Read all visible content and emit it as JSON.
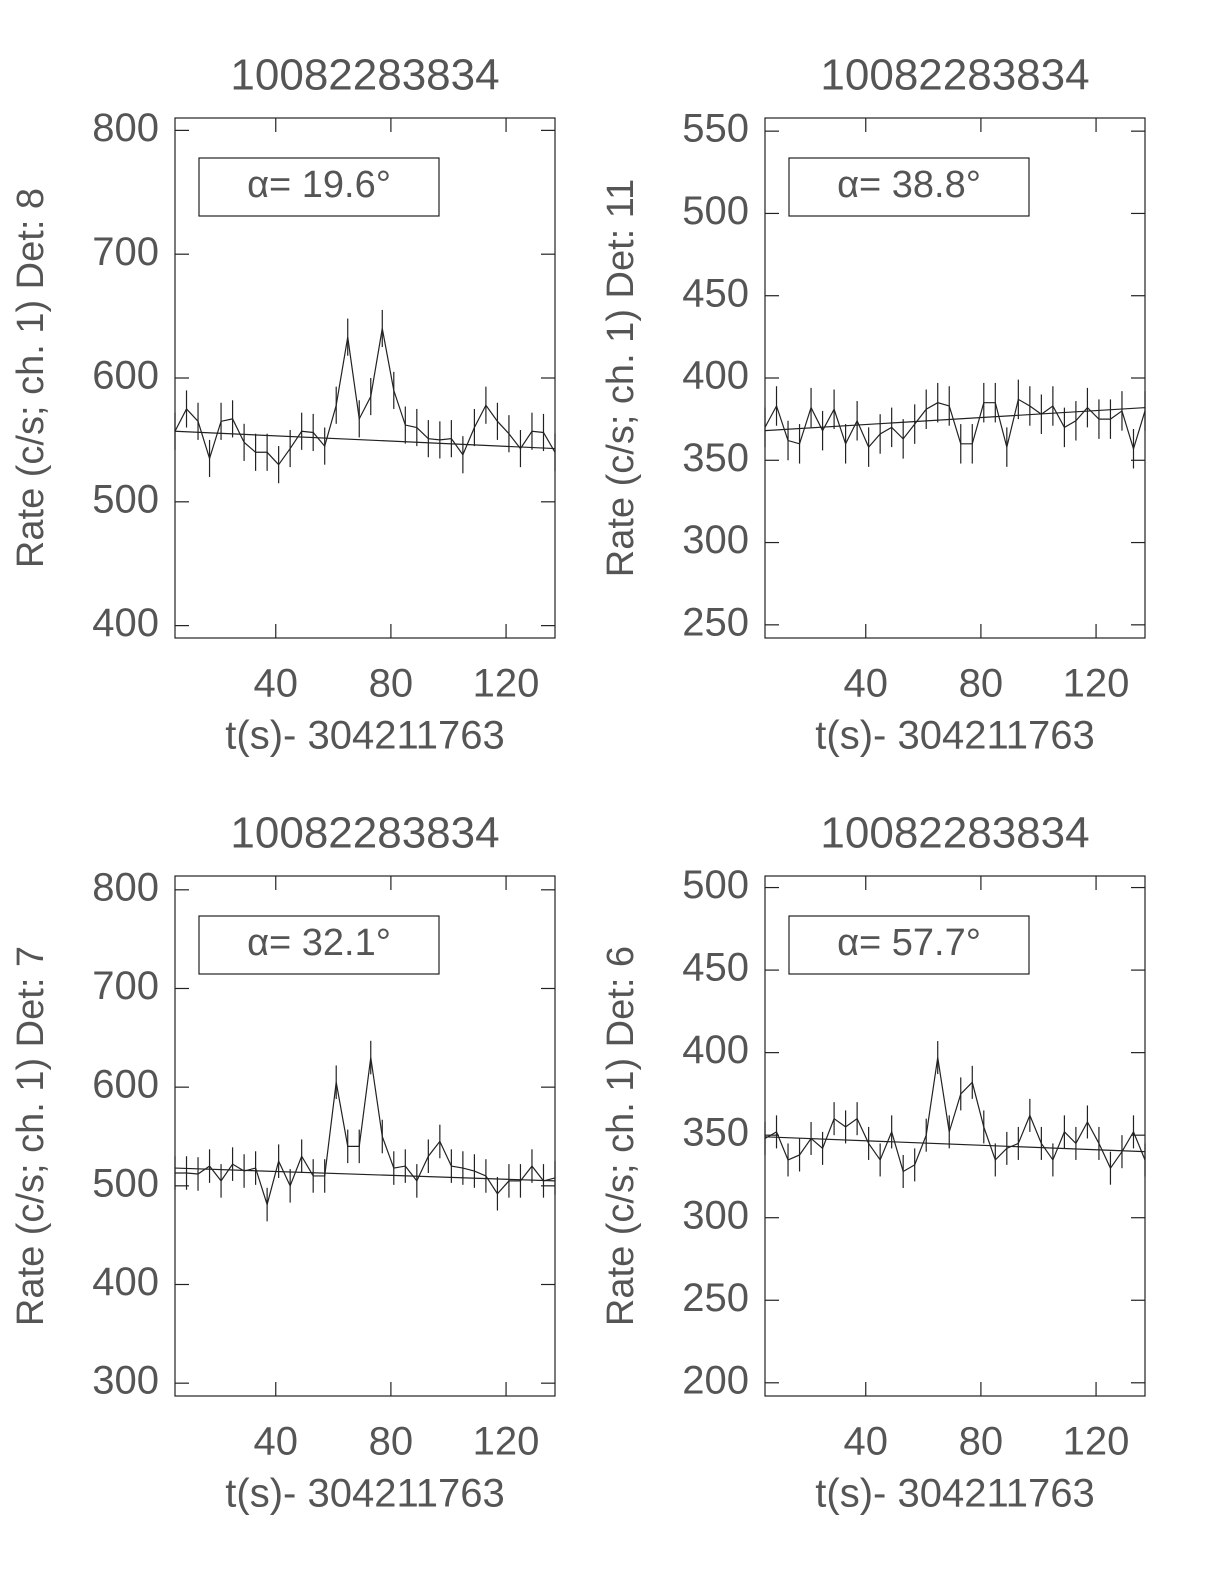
{
  "chart_data": [
    {
      "type": "line",
      "title": "10082283834",
      "ylabel": "Rate (c/s; ch. 1) Det: 8",
      "xlabel": "t(s)- 304211763",
      "annotation": "α= 19.6°",
      "xlim": [
        5,
        137
      ],
      "xticks": [
        40,
        80,
        120
      ],
      "ylim": [
        390,
        810
      ],
      "yticks": [
        400,
        500,
        600,
        700,
        800
      ],
      "x": [
        5,
        9,
        13,
        17,
        21,
        25,
        29,
        33,
        37,
        41,
        45,
        49,
        53,
        57,
        61,
        65,
        69,
        73,
        77,
        81,
        85,
        89,
        93,
        97,
        101,
        105,
        109,
        113,
        117,
        121,
        125,
        129,
        133,
        137
      ],
      "values": [
        557,
        575,
        565,
        535,
        565,
        567,
        548,
        540,
        540,
        530,
        543,
        557,
        556,
        545,
        578,
        633,
        567,
        585,
        640,
        590,
        562,
        560,
        551,
        550,
        551,
        538,
        560,
        578,
        565,
        555,
        543,
        557,
        556,
        540
      ],
      "errors": [
        15,
        15,
        15,
        15,
        15,
        15,
        15,
        15,
        15,
        15,
        15,
        15,
        15,
        15,
        15,
        15,
        15,
        15,
        15,
        15,
        15,
        15,
        15,
        15,
        15,
        15,
        15,
        15,
        15,
        15,
        15,
        15,
        15,
        15
      ],
      "fit": {
        "x": [
          5,
          137
        ],
        "values": [
          557,
          543
        ]
      }
    },
    {
      "type": "line",
      "title": "10082283834",
      "ylabel": "Rate (c/s; ch. 1) Det: 11",
      "xlabel": "t(s)- 304211763",
      "annotation": "α= 38.8°",
      "xlim": [
        5,
        137
      ],
      "xticks": [
        40,
        80,
        120
      ],
      "ylim": [
        242,
        558
      ],
      "yticks": [
        250,
        300,
        350,
        400,
        450,
        500,
        550
      ],
      "x": [
        5,
        9,
        13,
        17,
        21,
        25,
        29,
        33,
        37,
        41,
        45,
        49,
        53,
        57,
        61,
        65,
        69,
        73,
        77,
        81,
        85,
        89,
        93,
        97,
        101,
        105,
        109,
        113,
        117,
        121,
        125,
        129,
        133,
        137
      ],
      "values": [
        370,
        383,
        362,
        360,
        382,
        368,
        381,
        360,
        374,
        358,
        366,
        370,
        363,
        372,
        381,
        385,
        383,
        360,
        360,
        385,
        385,
        358,
        387,
        383,
        378,
        383,
        370,
        374,
        382,
        375,
        375,
        380,
        357,
        380
      ],
      "errors": [
        12,
        12,
        12,
        12,
        12,
        12,
        12,
        12,
        12,
        12,
        12,
        12,
        12,
        12,
        12,
        12,
        12,
        12,
        12,
        12,
        12,
        12,
        12,
        12,
        12,
        12,
        12,
        12,
        12,
        12,
        12,
        12,
        12,
        12
      ],
      "fit": {
        "x": [
          5,
          137
        ],
        "values": [
          368,
          382
        ]
      }
    },
    {
      "type": "line",
      "title": "10082283834",
      "ylabel": "Rate (c/s; ch. 1) Det: 7",
      "xlabel": "t(s)- 304211763",
      "annotation": "α= 32.1°",
      "xlim": [
        5,
        137
      ],
      "xticks": [
        40,
        80,
        120
      ],
      "ylim": [
        287,
        814
      ],
      "yticks": [
        300,
        400,
        500,
        600,
        700,
        800
      ],
      "x": [
        5,
        9,
        13,
        17,
        21,
        25,
        29,
        33,
        37,
        41,
        45,
        49,
        53,
        57,
        61,
        65,
        69,
        73,
        77,
        81,
        85,
        89,
        93,
        97,
        101,
        105,
        109,
        113,
        117,
        121,
        125,
        129,
        133,
        137
      ],
      "values": [
        513,
        513,
        512,
        520,
        505,
        522,
        515,
        518,
        481,
        525,
        500,
        530,
        510,
        510,
        605,
        540,
        540,
        630,
        550,
        518,
        520,
        505,
        530,
        545,
        520,
        518,
        515,
        510,
        492,
        505,
        505,
        520,
        505,
        508
      ],
      "errors": [
        17,
        17,
        17,
        17,
        17,
        17,
        17,
        17,
        17,
        17,
        17,
        17,
        17,
        17,
        17,
        17,
        17,
        17,
        17,
        17,
        17,
        17,
        17,
        17,
        17,
        17,
        17,
        17,
        17,
        17,
        17,
        17,
        17,
        17
      ],
      "fit": {
        "x": [
          5,
          137
        ],
        "values": [
          518,
          505
        ]
      }
    },
    {
      "type": "line",
      "title": "10082283834",
      "ylabel": "Rate (c/s; ch. 1) Det: 6",
      "xlabel": "t(s)- 304211763",
      "annotation": "α= 57.7°",
      "xlim": [
        5,
        137
      ],
      "xticks": [
        40,
        80,
        120
      ],
      "ylim": [
        192,
        507
      ],
      "yticks": [
        200,
        250,
        300,
        350,
        400,
        450,
        500
      ],
      "x": [
        5,
        9,
        13,
        17,
        21,
        25,
        29,
        33,
        37,
        41,
        45,
        49,
        53,
        57,
        61,
        65,
        69,
        73,
        77,
        81,
        85,
        89,
        93,
        97,
        101,
        105,
        109,
        113,
        117,
        121,
        125,
        129,
        133,
        137
      ],
      "values": [
        348,
        352,
        335,
        338,
        348,
        342,
        360,
        355,
        360,
        345,
        335,
        352,
        328,
        332,
        350,
        397,
        352,
        375,
        382,
        355,
        335,
        342,
        345,
        362,
        345,
        335,
        352,
        345,
        358,
        345,
        330,
        340,
        352,
        335
      ],
      "errors": [
        10,
        10,
        10,
        10,
        10,
        10,
        10,
        10,
        10,
        10,
        10,
        10,
        10,
        10,
        10,
        10,
        10,
        10,
        10,
        10,
        10,
        10,
        10,
        10,
        10,
        10,
        10,
        10,
        10,
        10,
        10,
        10,
        10,
        10
      ],
      "fit": {
        "x": [
          5,
          137
        ],
        "values": [
          349,
          340
        ]
      }
    }
  ]
}
